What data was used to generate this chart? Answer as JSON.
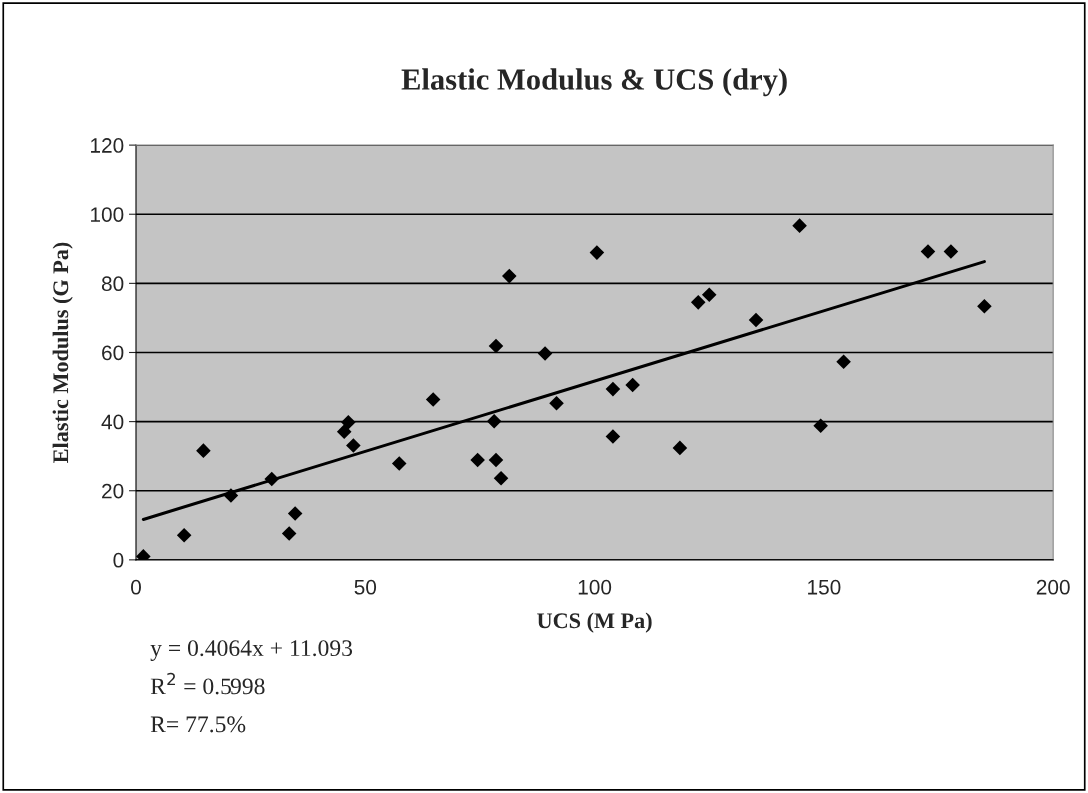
{
  "chart_data": {
    "type": "scatter",
    "title": "Elastic Modulus & UCS (dry)",
    "xlabel": "UCS (M Pa)",
    "ylabel": "Elastic Modulus (G Pa)",
    "xlim": [
      0,
      200
    ],
    "xticks": [
      0,
      50,
      100,
      150,
      200
    ],
    "ylim": [
      0,
      120
    ],
    "yticks": [
      0,
      20,
      40,
      60,
      80,
      100,
      120
    ],
    "grid": "y",
    "marker": "diamond",
    "series": [
      {
        "color": "#000000",
        "x": [
          1.6,
          10.5,
          14.7,
          20.7,
          29.6,
          33.4,
          34.7,
          45.4,
          46.3,
          47.4,
          57.4,
          64.8,
          74.5,
          81.4,
          100.5,
          78.5,
          89.2,
          122.6,
          125.0,
          135.2,
          104.0,
          108.3,
          91.7,
          78.1,
          104.0,
          118.6,
          78.5,
          79.6,
          144.7,
          172.7,
          177.7,
          185.0,
          154.3,
          149.3
        ],
        "values": [
          1.0,
          7.1,
          31.6,
          18.6,
          23.4,
          7.6,
          13.4,
          37.1,
          39.8,
          33.1,
          27.9,
          46.4,
          28.9,
          82.1,
          88.9,
          61.9,
          59.7,
          74.5,
          76.7,
          69.4,
          49.4,
          50.6,
          45.3,
          40.1,
          35.7,
          32.4,
          28.9,
          23.6,
          96.7,
          89.2,
          89.2,
          73.4,
          57.3,
          38.8
        ]
      },
      {
        "type": "line",
        "color": "#000000",
        "marker": "none",
        "x": [
          1.6,
          185.0
        ],
        "values": [
          11.7,
          86.3
        ]
      }
    ],
    "annotations": [
      "y = 0.4064x + 11.093",
      "R$^{2}$ = 0.5998",
      "R= 77.5%"
    ]
  }
}
